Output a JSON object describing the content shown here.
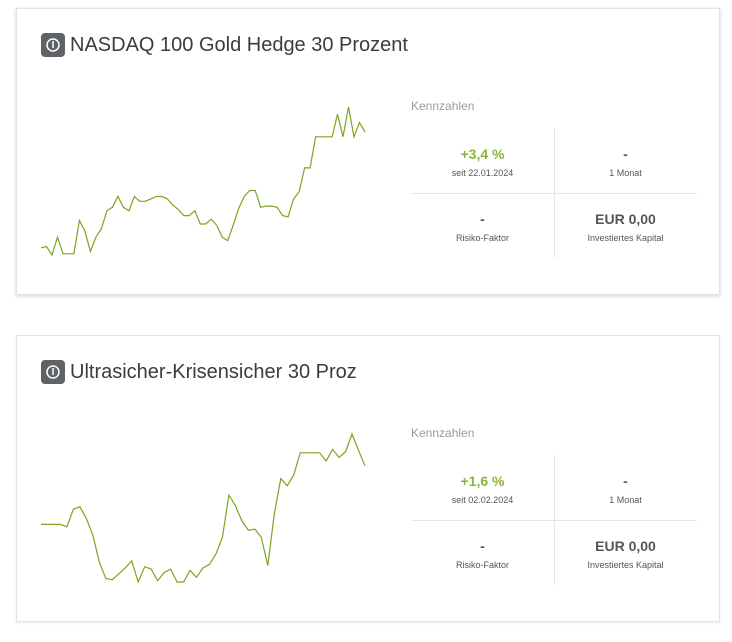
{
  "accent_color": "#7da421",
  "positive_color": "#8bb33a",
  "cards": [
    {
      "title": "NASDAQ 100 Gold Hedge 30 Prozent",
      "icon": "power-icon",
      "metrics_label": "Kennzahlen",
      "performance": {
        "value": "+3,4 %",
        "label": "seit 22.01.2024"
      },
      "period": {
        "value": "-",
        "label": "1 Monat"
      },
      "risk": {
        "value": "-",
        "label": "Risiko-Faktor"
      },
      "capital": {
        "value": "EUR 0,00",
        "label": "Investiertes Kapital"
      },
      "chart_data": {
        "type": "line",
        "series": [
          {
            "values": [
              13,
              14,
              7,
              22,
              8,
              8,
              8,
              36,
              27,
              10,
              22,
              29,
              44,
              47,
              56,
              47,
              44,
              56,
              52,
              52,
              54,
              56,
              56,
              54,
              49,
              45,
              40,
              40,
              44,
              33,
              33,
              37,
              32,
              22,
              19,
              32,
              46,
              56,
              61,
              61,
              47,
              48,
              48,
              47,
              40,
              39,
              54,
              60,
              80,
              80,
              106,
              106,
              106,
              106,
              125,
              106,
              131,
              106,
              118,
              110
            ]
          }
        ]
      }
    },
    {
      "title": "Ultrasicher-Krisensicher 30 Proz",
      "icon": "power-icon",
      "metrics_label": "Kennzahlen",
      "performance": {
        "value": "+1,6 %",
        "label": "seit 02.02.2024"
      },
      "period": {
        "value": "-",
        "label": "1 Monat"
      },
      "risk": {
        "value": "-",
        "label": "Risiko-Faktor"
      },
      "capital": {
        "value": "EUR 0,00",
        "label": "Investiertes Kapital"
      },
      "chart_data": {
        "type": "line",
        "series": [
          {
            "values": [
              63,
              63,
              63,
              63,
              61,
              76,
              78,
              68,
              54,
              31,
              17,
              16,
              21,
              26,
              32,
              14,
              27,
              25,
              15,
              22,
              25,
              14,
              14,
              24,
              18,
              26,
              29,
              38,
              52,
              88,
              79,
              66,
              58,
              59,
              52,
              28,
              72,
              102,
              96,
              105,
              124,
              124,
              124,
              124,
              117,
              127,
              120,
              125,
              140,
              126,
              113
            ]
          }
        ]
      }
    }
  ]
}
